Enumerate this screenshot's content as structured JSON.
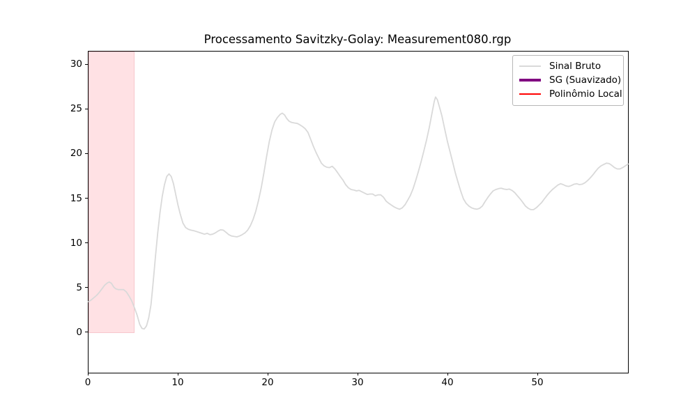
{
  "title_bar": {},
  "chart_data": {
    "type": "line",
    "title": "Processamento Savitzky-Golay: Measurement080.rgp",
    "xlabel": "",
    "ylabel": "",
    "xlim": [
      0,
      60
    ],
    "ylim": [
      -4.45,
      31.49
    ],
    "x_ticks": [
      0,
      10,
      20,
      30,
      40,
      50
    ],
    "y_ticks": [
      0,
      5,
      10,
      15,
      20,
      25,
      30
    ],
    "grid": false,
    "legend_position": "upper right",
    "highlight_span": {
      "x_start": 0,
      "x_end": 5.15,
      "y_start": 0,
      "y_end": "axis-top",
      "fill_color": "#ffe1e4",
      "edge_color": "#f8c7cd"
    },
    "series": [
      {
        "name": "Sinal Bruto",
        "color": "#d9d9d9",
        "line_width": 1.8,
        "legend_swatch_width": 2,
        "points": [
          [
            0.0,
            3.5
          ],
          [
            0.3,
            3.7
          ],
          [
            0.6,
            3.95
          ],
          [
            0.9,
            4.2
          ],
          [
            1.2,
            4.55
          ],
          [
            1.5,
            4.95
          ],
          [
            1.8,
            5.35
          ],
          [
            2.1,
            5.6
          ],
          [
            2.3,
            5.7
          ],
          [
            2.55,
            5.55
          ],
          [
            2.8,
            5.15
          ],
          [
            3.0,
            4.95
          ],
          [
            3.3,
            4.85
          ],
          [
            3.6,
            4.85
          ],
          [
            3.9,
            4.85
          ],
          [
            4.2,
            4.6
          ],
          [
            4.5,
            4.15
          ],
          [
            4.8,
            3.6
          ],
          [
            5.1,
            2.85
          ],
          [
            5.4,
            2.0
          ],
          [
            5.7,
            0.95
          ],
          [
            5.95,
            0.5
          ],
          [
            6.2,
            0.45
          ],
          [
            6.45,
            0.8
          ],
          [
            6.7,
            1.7
          ],
          [
            6.95,
            3.2
          ],
          [
            7.2,
            5.8
          ],
          [
            7.45,
            8.6
          ],
          [
            7.7,
            11.2
          ],
          [
            7.95,
            13.5
          ],
          [
            8.2,
            15.3
          ],
          [
            8.45,
            16.6
          ],
          [
            8.7,
            17.5
          ],
          [
            8.95,
            17.8
          ],
          [
            9.2,
            17.5
          ],
          [
            9.45,
            16.7
          ],
          [
            9.7,
            15.5
          ],
          [
            9.95,
            14.3
          ],
          [
            10.2,
            13.3
          ],
          [
            10.5,
            12.3
          ],
          [
            10.8,
            11.8
          ],
          [
            11.1,
            11.6
          ],
          [
            11.4,
            11.5
          ],
          [
            11.7,
            11.45
          ],
          [
            12.0,
            11.35
          ],
          [
            12.3,
            11.25
          ],
          [
            12.6,
            11.15
          ],
          [
            12.9,
            11.05
          ],
          [
            13.2,
            11.15
          ],
          [
            13.5,
            11.0
          ],
          [
            13.8,
            11.05
          ],
          [
            14.1,
            11.2
          ],
          [
            14.4,
            11.4
          ],
          [
            14.7,
            11.55
          ],
          [
            15.0,
            11.5
          ],
          [
            15.3,
            11.25
          ],
          [
            15.6,
            11.0
          ],
          [
            15.9,
            10.85
          ],
          [
            16.2,
            10.8
          ],
          [
            16.5,
            10.75
          ],
          [
            16.8,
            10.85
          ],
          [
            17.1,
            11.0
          ],
          [
            17.4,
            11.2
          ],
          [
            17.7,
            11.5
          ],
          [
            18.0,
            12.0
          ],
          [
            18.3,
            12.7
          ],
          [
            18.6,
            13.6
          ],
          [
            18.9,
            14.8
          ],
          [
            19.2,
            16.2
          ],
          [
            19.5,
            17.9
          ],
          [
            19.8,
            19.7
          ],
          [
            20.1,
            21.4
          ],
          [
            20.4,
            22.7
          ],
          [
            20.7,
            23.6
          ],
          [
            21.0,
            24.1
          ],
          [
            21.3,
            24.45
          ],
          [
            21.55,
            24.6
          ],
          [
            21.8,
            24.4
          ],
          [
            22.05,
            24.0
          ],
          [
            22.3,
            23.7
          ],
          [
            22.6,
            23.55
          ],
          [
            22.9,
            23.5
          ],
          [
            23.2,
            23.45
          ],
          [
            23.5,
            23.3
          ],
          [
            23.8,
            23.1
          ],
          [
            24.1,
            22.85
          ],
          [
            24.4,
            22.45
          ],
          [
            24.7,
            21.7
          ],
          [
            25.0,
            20.9
          ],
          [
            25.3,
            20.2
          ],
          [
            25.6,
            19.6
          ],
          [
            25.9,
            19.0
          ],
          [
            26.2,
            18.7
          ],
          [
            26.5,
            18.55
          ],
          [
            26.8,
            18.5
          ],
          [
            27.1,
            18.65
          ],
          [
            27.4,
            18.35
          ],
          [
            27.7,
            17.95
          ],
          [
            28.0,
            17.5
          ],
          [
            28.3,
            17.1
          ],
          [
            28.6,
            16.6
          ],
          [
            28.9,
            16.25
          ],
          [
            29.2,
            16.05
          ],
          [
            29.5,
            16.0
          ],
          [
            29.8,
            15.9
          ],
          [
            30.1,
            15.95
          ],
          [
            30.4,
            15.8
          ],
          [
            30.7,
            15.65
          ],
          [
            31.0,
            15.5
          ],
          [
            31.3,
            15.55
          ],
          [
            31.6,
            15.55
          ],
          [
            31.9,
            15.35
          ],
          [
            32.2,
            15.45
          ],
          [
            32.5,
            15.45
          ],
          [
            32.8,
            15.2
          ],
          [
            33.1,
            14.75
          ],
          [
            33.4,
            14.5
          ],
          [
            33.7,
            14.3
          ],
          [
            34.0,
            14.1
          ],
          [
            34.3,
            13.95
          ],
          [
            34.6,
            13.85
          ],
          [
            34.9,
            14.0
          ],
          [
            35.2,
            14.35
          ],
          [
            35.5,
            14.85
          ],
          [
            35.8,
            15.4
          ],
          [
            36.1,
            16.15
          ],
          [
            36.4,
            17.1
          ],
          [
            36.7,
            18.1
          ],
          [
            37.0,
            19.2
          ],
          [
            37.3,
            20.4
          ],
          [
            37.6,
            21.6
          ],
          [
            37.9,
            23.0
          ],
          [
            38.2,
            24.6
          ],
          [
            38.45,
            25.9
          ],
          [
            38.6,
            26.4
          ],
          [
            38.8,
            26.1
          ],
          [
            39.0,
            25.4
          ],
          [
            39.3,
            24.3
          ],
          [
            39.6,
            22.9
          ],
          [
            39.9,
            21.5
          ],
          [
            40.2,
            20.3
          ],
          [
            40.5,
            19.1
          ],
          [
            40.8,
            17.9
          ],
          [
            41.1,
            16.85
          ],
          [
            41.4,
            15.85
          ],
          [
            41.7,
            15.0
          ],
          [
            42.0,
            14.5
          ],
          [
            42.3,
            14.2
          ],
          [
            42.6,
            14.0
          ],
          [
            42.9,
            13.9
          ],
          [
            43.2,
            13.85
          ],
          [
            43.5,
            13.95
          ],
          [
            43.8,
            14.2
          ],
          [
            44.1,
            14.7
          ],
          [
            44.4,
            15.15
          ],
          [
            44.7,
            15.55
          ],
          [
            45.0,
            15.9
          ],
          [
            45.3,
            16.05
          ],
          [
            45.6,
            16.15
          ],
          [
            45.9,
            16.2
          ],
          [
            46.2,
            16.1
          ],
          [
            46.5,
            16.05
          ],
          [
            46.8,
            16.1
          ],
          [
            47.1,
            15.95
          ],
          [
            47.4,
            15.7
          ],
          [
            47.7,
            15.35
          ],
          [
            48.0,
            15.0
          ],
          [
            48.3,
            14.6
          ],
          [
            48.6,
            14.2
          ],
          [
            48.9,
            13.95
          ],
          [
            49.2,
            13.8
          ],
          [
            49.5,
            13.8
          ],
          [
            49.8,
            14.0
          ],
          [
            50.1,
            14.3
          ],
          [
            50.4,
            14.6
          ],
          [
            50.7,
            15.0
          ],
          [
            51.0,
            15.4
          ],
          [
            51.3,
            15.75
          ],
          [
            51.6,
            16.05
          ],
          [
            51.9,
            16.3
          ],
          [
            52.2,
            16.55
          ],
          [
            52.5,
            16.7
          ],
          [
            52.8,
            16.6
          ],
          [
            53.1,
            16.45
          ],
          [
            53.4,
            16.4
          ],
          [
            53.7,
            16.5
          ],
          [
            54.0,
            16.65
          ],
          [
            54.3,
            16.7
          ],
          [
            54.6,
            16.6
          ],
          [
            54.9,
            16.65
          ],
          [
            55.2,
            16.8
          ],
          [
            55.5,
            17.05
          ],
          [
            55.8,
            17.35
          ],
          [
            56.1,
            17.7
          ],
          [
            56.4,
            18.1
          ],
          [
            56.7,
            18.45
          ],
          [
            57.0,
            18.7
          ],
          [
            57.3,
            18.85
          ],
          [
            57.6,
            19.0
          ],
          [
            57.9,
            18.95
          ],
          [
            58.2,
            18.75
          ],
          [
            58.5,
            18.5
          ],
          [
            58.8,
            18.35
          ],
          [
            59.1,
            18.35
          ],
          [
            59.4,
            18.5
          ],
          [
            59.7,
            18.7
          ],
          [
            60.0,
            18.9
          ]
        ]
      },
      {
        "name": "SG (Suavizado)",
        "color": "#800080",
        "line_width": 3.5,
        "legend_swatch_width": 4,
        "points": []
      },
      {
        "name": "Polinômio Local",
        "color": "#ff0000",
        "line_width": 2,
        "legend_swatch_width": 2,
        "points": []
      }
    ]
  }
}
